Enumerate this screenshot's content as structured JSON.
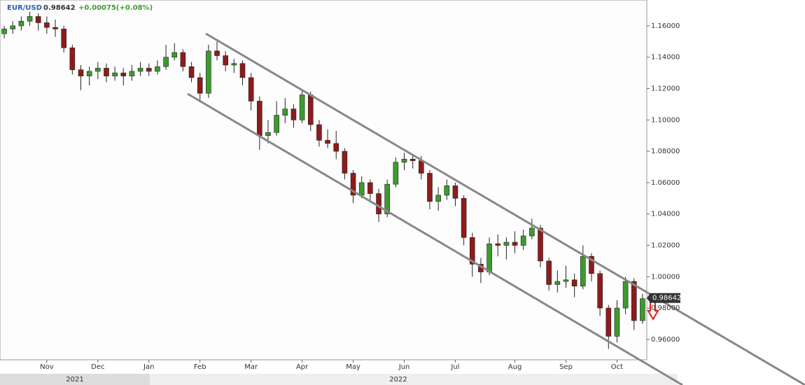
{
  "chart_data": {
    "type": "candlestick",
    "symbol": "EUR/USD",
    "last": 0.98642,
    "change": "+0.00075(+0.08%)",
    "up_color": "#3c9b2e",
    "down_color": "#8e1b1b",
    "ylim": [
      0.947,
      1.1765
    ],
    "yticks": [
      {
        "value": 0.96,
        "label": "0.96000"
      },
      {
        "value": 0.98,
        "label": "0.98000"
      },
      {
        "value": 1.0,
        "label": "1.00000"
      },
      {
        "value": 1.02,
        "label": "1.02000"
      },
      {
        "value": 1.04,
        "label": "1.04000"
      },
      {
        "value": 1.06,
        "label": "1.06000"
      },
      {
        "value": 1.08,
        "label": "1.08000"
      },
      {
        "value": 1.1,
        "label": "1.10000"
      },
      {
        "value": 1.12,
        "label": "1.12000"
      },
      {
        "value": 1.14,
        "label": "1.14000"
      },
      {
        "value": 1.16,
        "label": "1.16000"
      }
    ],
    "years": [
      "2021",
      "2022"
    ],
    "categories": [
      null,
      null,
      null,
      null,
      null,
      "Nov",
      null,
      null,
      null,
      null,
      null,
      "Dec",
      null,
      null,
      null,
      null,
      null,
      "Jan",
      null,
      null,
      null,
      null,
      null,
      "Feb",
      null,
      null,
      null,
      null,
      null,
      "Mar",
      null,
      null,
      null,
      null,
      null,
      "Apr",
      null,
      null,
      null,
      null,
      null,
      "May",
      null,
      null,
      null,
      null,
      null,
      "Jun",
      null,
      null,
      null,
      null,
      null,
      "Jul",
      null,
      null,
      null,
      null,
      null,
      null,
      "Aug",
      null,
      null,
      null,
      null,
      null,
      "Sep",
      null,
      null,
      null,
      null,
      null,
      "Oct",
      null,
      null,
      null
    ],
    "ohlc": [
      [
        1.155,
        1.16,
        1.152,
        1.158
      ],
      [
        1.158,
        1.163,
        1.155,
        1.16
      ],
      [
        1.16,
        1.166,
        1.157,
        1.163
      ],
      [
        1.163,
        1.169,
        1.16,
        1.166
      ],
      [
        1.166,
        1.168,
        1.157,
        1.162
      ],
      [
        1.162,
        1.166,
        1.155,
        1.159
      ],
      [
        1.159,
        1.164,
        1.153,
        1.158
      ],
      [
        1.158,
        1.16,
        1.143,
        1.146
      ],
      [
        1.146,
        1.148,
        1.129,
        1.132
      ],
      [
        1.132,
        1.135,
        1.119,
        1.128
      ],
      [
        1.128,
        1.134,
        1.122,
        1.131
      ],
      [
        1.131,
        1.137,
        1.126,
        1.133
      ],
      [
        1.133,
        1.136,
        1.124,
        1.128
      ],
      [
        1.128,
        1.134,
        1.125,
        1.13
      ],
      [
        1.13,
        1.133,
        1.122,
        1.128
      ],
      [
        1.128,
        1.135,
        1.125,
        1.131
      ],
      [
        1.131,
        1.137,
        1.128,
        1.133
      ],
      [
        1.133,
        1.136,
        1.128,
        1.131
      ],
      [
        1.131,
        1.138,
        1.129,
        1.134
      ],
      [
        1.134,
        1.148,
        1.132,
        1.14
      ],
      [
        1.14,
        1.149,
        1.138,
        1.143
      ],
      [
        1.143,
        1.145,
        1.131,
        1.134
      ],
      [
        1.134,
        1.137,
        1.124,
        1.127
      ],
      [
        1.127,
        1.13,
        1.112,
        1.117
      ],
      [
        1.117,
        1.148,
        1.114,
        1.144
      ],
      [
        1.144,
        1.15,
        1.138,
        1.141
      ],
      [
        1.141,
        1.144,
        1.131,
        1.135
      ],
      [
        1.135,
        1.139,
        1.13,
        1.136
      ],
      [
        1.136,
        1.138,
        1.122,
        1.127
      ],
      [
        1.127,
        1.13,
        1.106,
        1.112
      ],
      [
        1.112,
        1.115,
        1.081,
        1.09
      ],
      [
        1.09,
        1.1,
        1.085,
        1.092
      ],
      [
        1.092,
        1.112,
        1.09,
        1.103
      ],
      [
        1.103,
        1.114,
        1.098,
        1.107
      ],
      [
        1.107,
        1.11,
        1.095,
        1.1
      ],
      [
        1.1,
        1.119,
        1.098,
        1.116
      ],
      [
        1.116,
        1.118,
        1.093,
        1.097
      ],
      [
        1.097,
        1.1,
        1.083,
        1.087
      ],
      [
        1.087,
        1.094,
        1.082,
        1.085
      ],
      [
        1.085,
        1.093,
        1.075,
        1.08
      ],
      [
        1.08,
        1.082,
        1.062,
        1.066
      ],
      [
        1.066,
        1.068,
        1.047,
        1.052
      ],
      [
        1.052,
        1.064,
        1.05,
        1.06
      ],
      [
        1.06,
        1.062,
        1.049,
        1.053
      ],
      [
        1.053,
        1.056,
        1.035,
        1.04
      ],
      [
        1.04,
        1.062,
        1.038,
        1.059
      ],
      [
        1.059,
        1.076,
        1.057,
        1.073
      ],
      [
        1.073,
        1.079,
        1.068,
        1.075
      ],
      [
        1.075,
        1.078,
        1.069,
        1.074
      ],
      [
        1.074,
        1.077,
        1.062,
        1.066
      ],
      [
        1.066,
        1.068,
        1.043,
        1.048
      ],
      [
        1.048,
        1.057,
        1.042,
        1.052
      ],
      [
        1.052,
        1.062,
        1.049,
        1.058
      ],
      [
        1.058,
        1.06,
        1.045,
        1.05
      ],
      [
        1.05,
        1.052,
        1.02,
        1.025
      ],
      [
        1.025,
        1.028,
        1.0,
        1.008
      ],
      [
        1.008,
        1.012,
        0.996,
        1.003
      ],
      [
        1.003,
        1.025,
        1.001,
        1.021
      ],
      [
        1.021,
        1.027,
        1.013,
        1.02
      ],
      [
        1.02,
        1.025,
        1.011,
        1.022
      ],
      [
        1.022,
        1.029,
        1.015,
        1.02
      ],
      [
        1.02,
        1.03,
        1.017,
        1.026
      ],
      [
        1.026,
        1.037,
        1.024,
        1.031
      ],
      [
        1.031,
        1.033,
        1.006,
        1.01
      ],
      [
        1.01,
        1.012,
        0.991,
        0.995
      ],
      [
        0.995,
        1.004,
        0.99,
        0.997
      ],
      [
        0.997,
        1.007,
        0.993,
        0.998
      ],
      [
        0.998,
        1.002,
        0.987,
        0.994
      ],
      [
        0.994,
        1.02,
        0.992,
        1.013
      ],
      [
        1.013,
        1.015,
        0.997,
        1.002
      ],
      [
        1.002,
        1.004,
        0.975,
        0.98
      ],
      [
        0.98,
        0.982,
        0.954,
        0.962
      ],
      [
        0.962,
        0.985,
        0.958,
        0.98
      ],
      [
        0.98,
        1.0,
        0.976,
        0.997
      ],
      [
        0.997,
        0.999,
        0.966,
        0.972
      ],
      [
        0.972,
        0.989,
        0.97,
        0.986
      ]
    ]
  }
}
